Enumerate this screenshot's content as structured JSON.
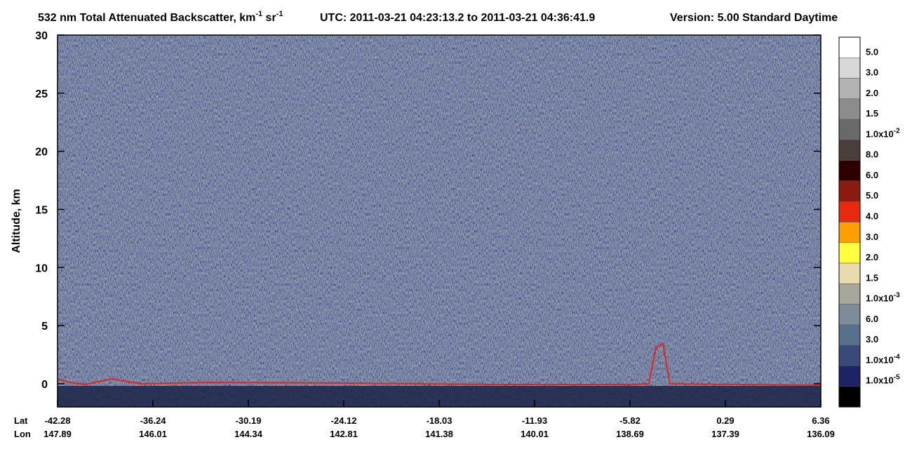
{
  "chart_data": {
    "type": "curtain",
    "title": [
      "532 nm Total Attenuated Backscatter, km",
      "-1",
      " sr",
      "-1",
      "UTC:  2011-03-21 04:23:13.2  to  2011-03-21 04:36:41.9",
      "Version: 5.00  Standard  Daytime"
    ],
    "y_label": "Altitude, km",
    "ylim": [
      -2,
      30
    ],
    "yticks": [
      0,
      5,
      10,
      15,
      20,
      25,
      30
    ],
    "x_rows": [
      "Lat",
      "Lon"
    ],
    "lat": [
      -42.28,
      -36.24,
      -30.19,
      -24.12,
      -18.03,
      -11.93,
      -5.82,
      0.29,
      6.36
    ],
    "lon": [
      147.89,
      146.01,
      144.34,
      142.81,
      141.38,
      140.01,
      138.69,
      137.39,
      136.09
    ],
    "colorbar": {
      "colors": [
        "#ffffff",
        "#d8d8d8",
        "#b3b3b3",
        "#8c8c8c",
        "#696969",
        "#4a3e3a",
        "#2e0000",
        "#8b1a10",
        "#e8290f",
        "#ff9e00",
        "#ffff40",
        "#e8dcae",
        "#a7a79b",
        "#7e8c99",
        "#56708e",
        "#374a7a",
        "#1e2266",
        "#000000"
      ],
      "labels": [
        {
          "text": "5.0"
        },
        {
          "text": "3.0"
        },
        {
          "text": "2.0"
        },
        {
          "text": "1.5"
        },
        {
          "text": "1.0x10",
          "sup": "-2"
        },
        {
          "text": "8.0"
        },
        {
          "text": "6.0"
        },
        {
          "text": "5.0"
        },
        {
          "text": "4.0"
        },
        {
          "text": "3.0"
        },
        {
          "text": "2.0"
        },
        {
          "text": "1.5"
        },
        {
          "text": "1.0x10",
          "sup": "-3"
        },
        {
          "text": "6.0"
        },
        {
          "text": "3.0"
        },
        {
          "text": "1.0x10",
          "sup": "-4"
        },
        {
          "text": "1.0x10",
          "sup": "-5"
        }
      ]
    }
  }
}
